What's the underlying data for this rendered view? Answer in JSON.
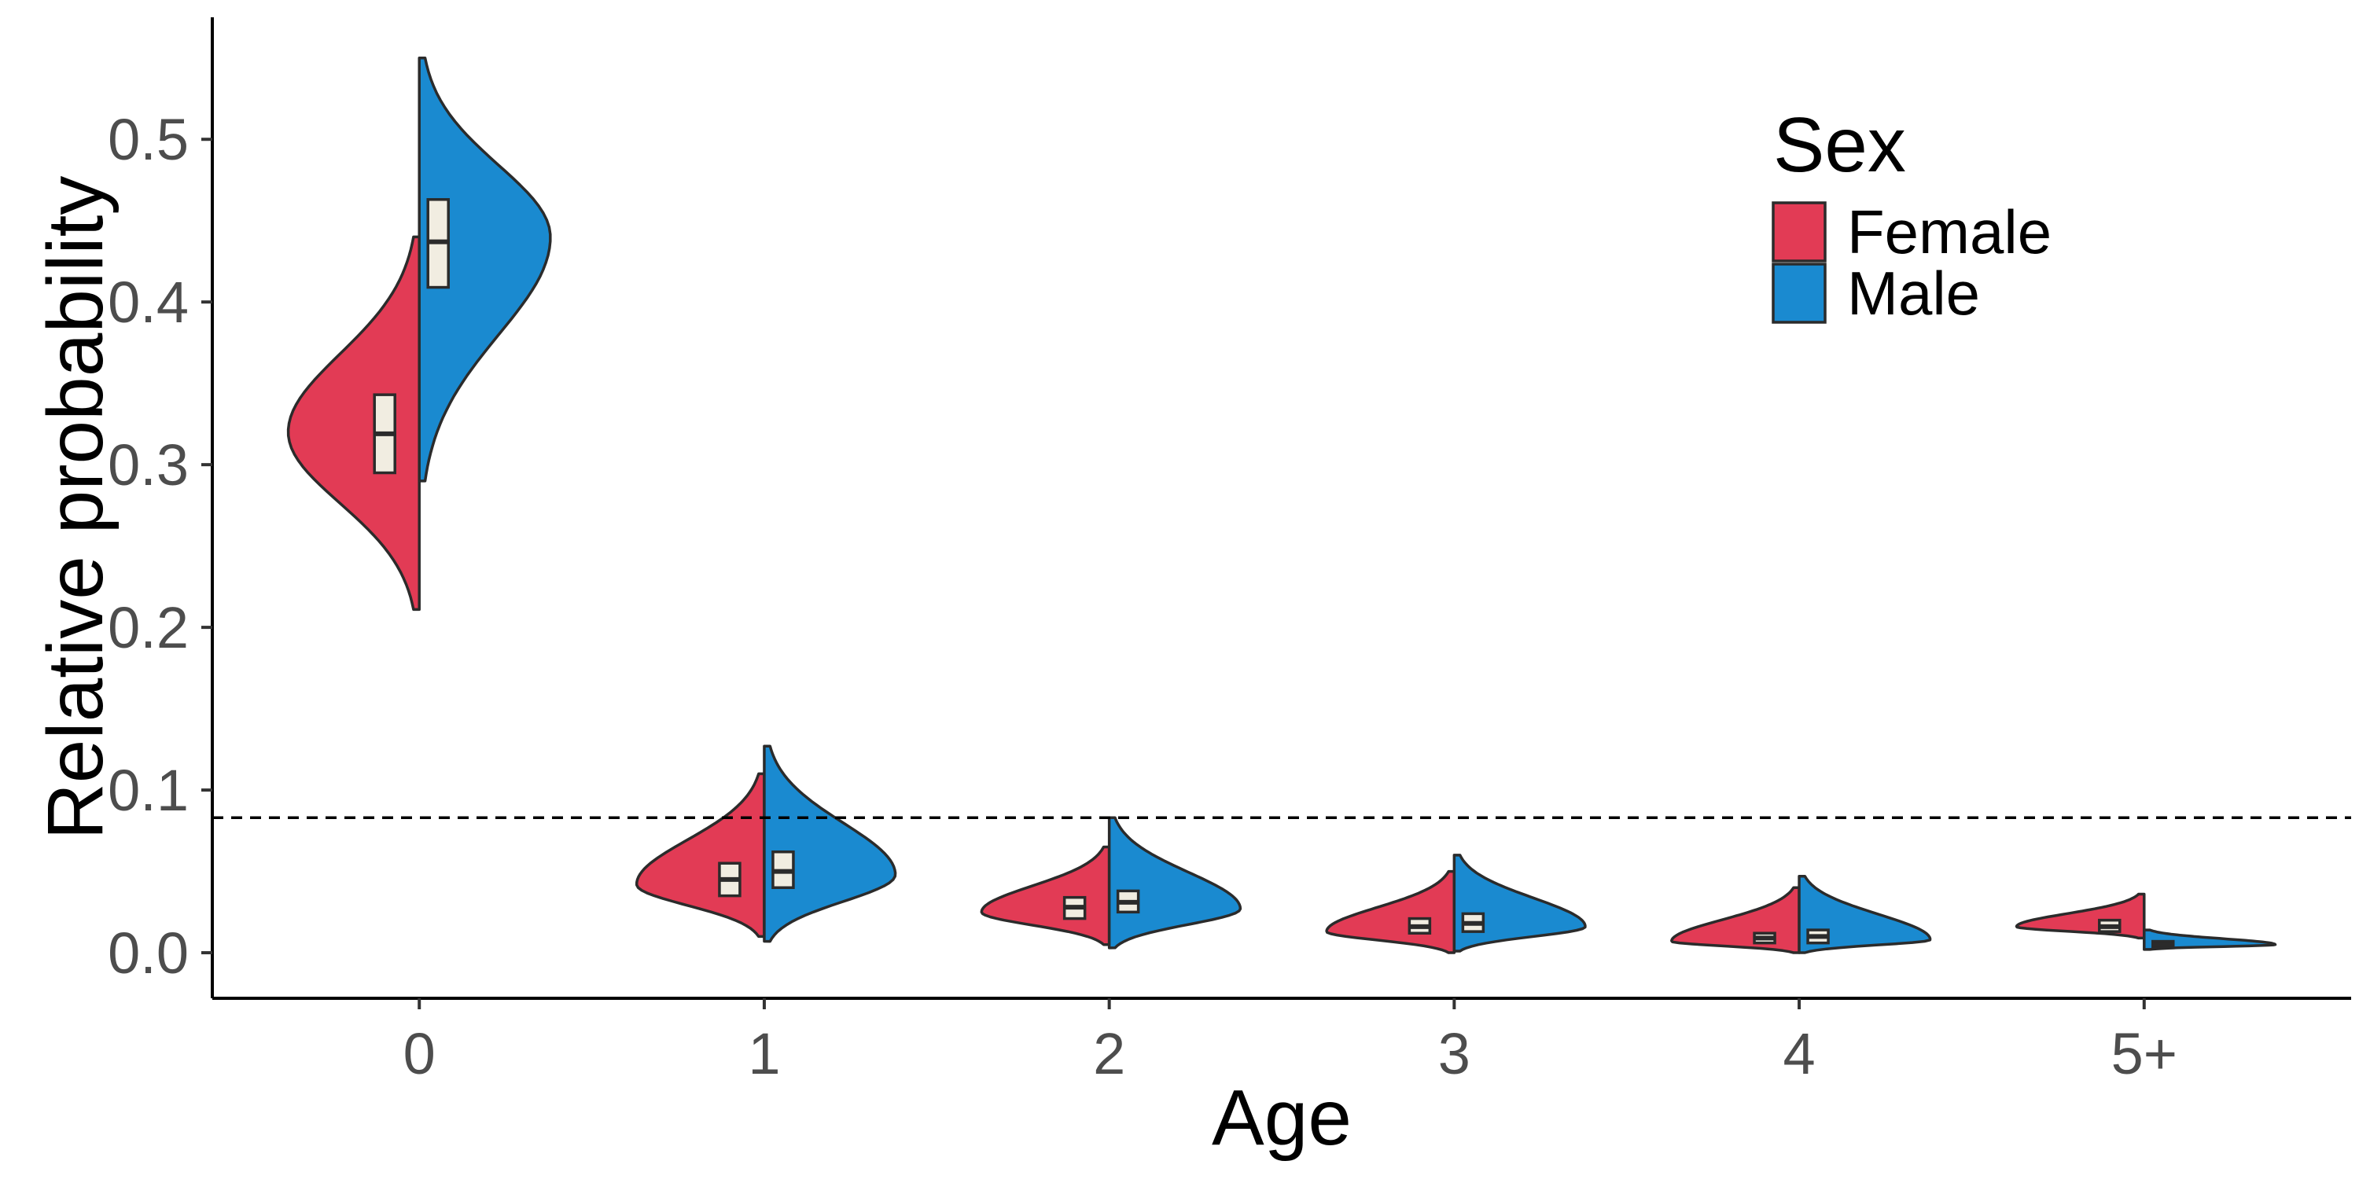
{
  "chart_data": {
    "type": "split-violin",
    "title": "",
    "xlabel": "Age",
    "ylabel": "Relative probability",
    "categories": [
      "0",
      "1",
      "2",
      "3",
      "4",
      "5+"
    ],
    "ylim": [
      -0.028,
      0.575
    ],
    "yticks": [
      0.0,
      0.1,
      0.2,
      0.3,
      0.4,
      0.5
    ],
    "ytick_labels": [
      "0.0",
      "0.1",
      "0.2",
      "0.3",
      "0.4",
      "0.5"
    ],
    "reference_line": {
      "y": 0.083,
      "style": "dashed"
    },
    "grid": false,
    "legend": {
      "title": "Sex",
      "position": "top-right",
      "entries": [
        {
          "label": "Female",
          "color": "#e23b55"
        },
        {
          "label": "Male",
          "color": "#1a8ad0"
        }
      ]
    },
    "series": [
      {
        "name": "Female",
        "color": "#e23b55",
        "side": "left",
        "violins": [
          {
            "category": "0",
            "min": 0.211,
            "max": 0.44,
            "mode": 0.32,
            "max_halfwidth": 0.38,
            "q1": 0.295,
            "median": 0.319,
            "q3": 0.343
          },
          {
            "category": "1",
            "min": 0.01,
            "max": 0.11,
            "mode": 0.042,
            "max_halfwidth": 0.37,
            "q1": 0.035,
            "median": 0.045,
            "q3": 0.055
          },
          {
            "category": "2",
            "min": 0.005,
            "max": 0.065,
            "mode": 0.025,
            "max_halfwidth": 0.37,
            "q1": 0.021,
            "median": 0.028,
            "q3": 0.034
          },
          {
            "category": "3",
            "min": 0.0,
            "max": 0.05,
            "mode": 0.013,
            "max_halfwidth": 0.37,
            "q1": 0.012,
            "median": 0.016,
            "q3": 0.021
          },
          {
            "category": "4",
            "min": 0.0,
            "max": 0.04,
            "mode": 0.007,
            "max_halfwidth": 0.37,
            "q1": 0.006,
            "median": 0.009,
            "q3": 0.012
          },
          {
            "category": "5+",
            "min": 0.009,
            "max": 0.036,
            "mode": 0.016,
            "max_halfwidth": 0.37,
            "q1": 0.013,
            "median": 0.016,
            "q3": 0.02
          }
        ]
      },
      {
        "name": "Male",
        "color": "#1a8ad0",
        "side": "right",
        "violins": [
          {
            "category": "0",
            "min": 0.29,
            "max": 0.55,
            "mode": 0.44,
            "max_halfwidth": 0.38,
            "q1": 0.409,
            "median": 0.437,
            "q3": 0.463
          },
          {
            "category": "1",
            "min": 0.007,
            "max": 0.127,
            "mode": 0.048,
            "max_halfwidth": 0.38,
            "q1": 0.04,
            "median": 0.05,
            "q3": 0.062
          },
          {
            "category": "2",
            "min": 0.003,
            "max": 0.083,
            "mode": 0.027,
            "max_halfwidth": 0.38,
            "q1": 0.025,
            "median": 0.031,
            "q3": 0.038
          },
          {
            "category": "3",
            "min": 0.001,
            "max": 0.06,
            "mode": 0.016,
            "max_halfwidth": 0.38,
            "q1": 0.013,
            "median": 0.018,
            "q3": 0.024
          },
          {
            "category": "4",
            "min": 0.0,
            "max": 0.047,
            "mode": 0.008,
            "max_halfwidth": 0.38,
            "q1": 0.006,
            "median": 0.01,
            "q3": 0.014
          },
          {
            "category": "5+",
            "min": 0.002,
            "max": 0.014,
            "mode": 0.005,
            "max_halfwidth": 0.38,
            "q1": 0.003,
            "median": 0.005,
            "q3": 0.007
          }
        ]
      }
    ]
  }
}
